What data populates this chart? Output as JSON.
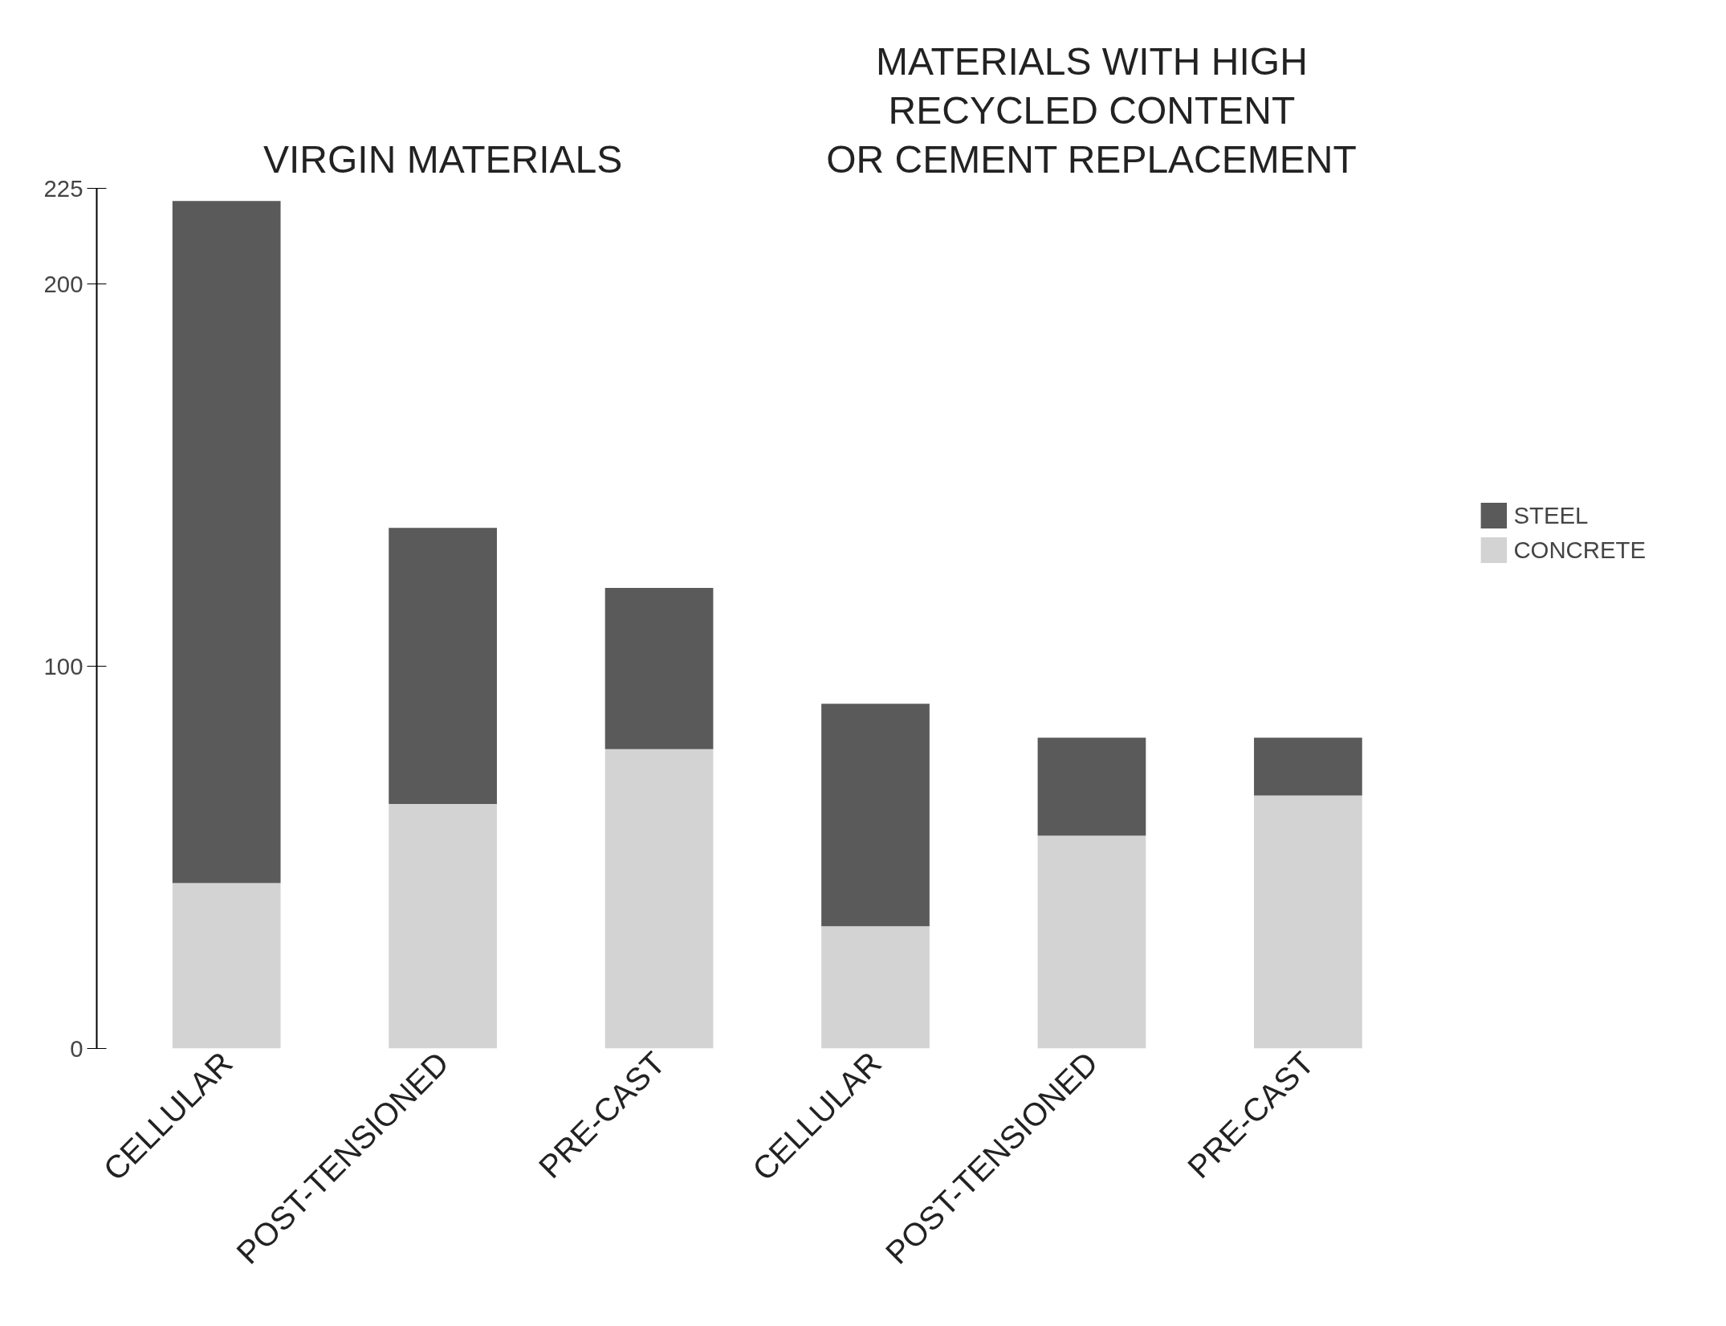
{
  "chart_data": {
    "type": "bar",
    "categories": [
      "CELLULAR",
      "POST-TENSIONED",
      "PRE-CAST",
      "CELLULAR",
      "POST-TENSIONED",
      "PRE-CAST"
    ],
    "stacked": true,
    "annotations": [
      "VIRGIN MATERIALS",
      "MATERIALS WITH HIGH\nRECYCLED CONTENT\nOR CEMENT REPLACEMENT"
    ],
    "series": [
      {
        "name": "CONCRETE",
        "color": "#d3d3d3",
        "values": [
          43.3,
          64,
          78.3,
          32,
          55.7,
          66.2
        ]
      },
      {
        "name": "STEEL",
        "color": "#5a5a5a",
        "values": [
          178.4,
          72.2,
          42.2,
          58.2,
          25.6,
          15.1
        ]
      }
    ],
    "ylim": [
      0,
      225
    ],
    "yticks": [
      0,
      100,
      200,
      225
    ],
    "grid": false,
    "legend": "right"
  }
}
